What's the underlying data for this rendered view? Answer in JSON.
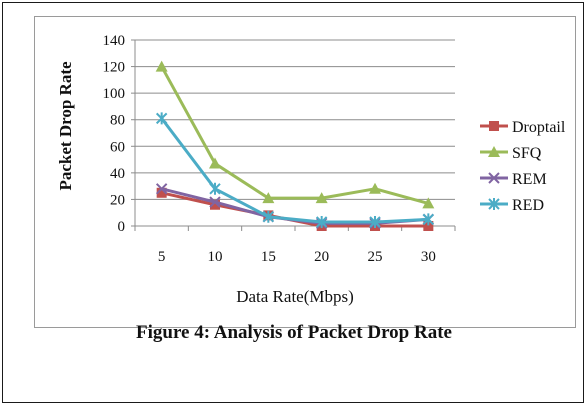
{
  "chart_data": {
    "type": "line",
    "categories": [
      "5",
      "10",
      "15",
      "20",
      "25",
      "30"
    ],
    "series": [
      {
        "name": "Droptail",
        "values": [
          25,
          16,
          8,
          0,
          0,
          0
        ],
        "color": "#c0504d",
        "marker": "square"
      },
      {
        "name": "SFQ",
        "values": [
          120,
          47,
          21,
          21,
          28,
          17
        ],
        "color": "#9bbb59",
        "marker": "triangle"
      },
      {
        "name": "REM",
        "values": [
          28,
          18,
          7,
          2,
          2,
          5
        ],
        "color": "#8064a2",
        "marker": "x"
      },
      {
        "name": "RED",
        "values": [
          81,
          28,
          7,
          3,
          3,
          5
        ],
        "color": "#4bacc6",
        "marker": "star"
      }
    ],
    "ylim": [
      0,
      140
    ],
    "yticks": [
      0,
      20,
      40,
      60,
      80,
      100,
      120,
      140
    ],
    "ylabel": "Packet Drop Rate",
    "xlabel": "Data Rate(Mbps)",
    "grid": true,
    "legend_position": "right"
  },
  "caption": "Figure 4: Analysis of Packet Drop Rate"
}
